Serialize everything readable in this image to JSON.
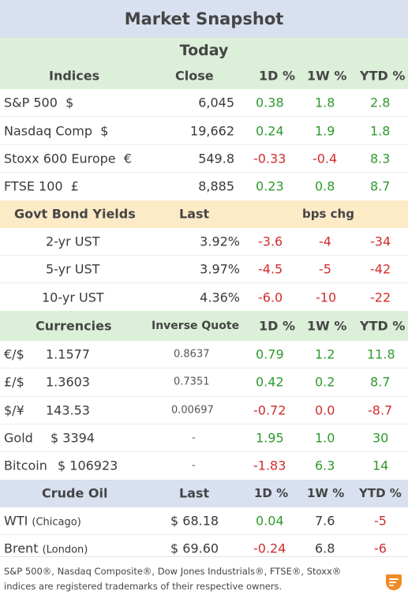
{
  "title": "Market Snapshot",
  "today_label": "Today",
  "indices": {
    "headers": {
      "name": "Indices",
      "close": "Close",
      "d1": "1D %",
      "w1": "1W %",
      "ytd": "YTD %"
    },
    "rows": [
      {
        "name": "S&P 500",
        "cur": "$",
        "close": "6,045",
        "d1": "0.38",
        "w1": "1.8",
        "ytd": "2.8"
      },
      {
        "name": "Nasdaq Comp",
        "cur": "$",
        "close": "19,662",
        "d1": "0.24",
        "w1": "1.9",
        "ytd": "1.8"
      },
      {
        "name": "Stoxx 600 Europe",
        "cur": "€",
        "close": "549.8",
        "d1": "-0.33",
        "w1": "-0.4",
        "ytd": "8.3"
      },
      {
        "name": "FTSE 100",
        "cur": "£",
        "close": "8,885",
        "d1": "0.23",
        "w1": "0.8",
        "ytd": "8.7"
      }
    ]
  },
  "bonds": {
    "headers": {
      "name": "Govt Bond Yields",
      "last": "Last",
      "chg": "bps chg"
    },
    "rows": [
      {
        "name": "2-yr UST",
        "last": "3.92%",
        "d1": "-3.6",
        "w1": "-4",
        "ytd": "-34"
      },
      {
        "name": "5-yr UST",
        "last": "3.97%",
        "d1": "-4.5",
        "w1": "-5",
        "ytd": "-42"
      },
      {
        "name": "10-yr UST",
        "last": "4.36%",
        "d1": "-6.0",
        "w1": "-10",
        "ytd": "-22"
      }
    ]
  },
  "currencies": {
    "headers": {
      "name": "Currencies",
      "inverse": "Inverse Quote",
      "d1": "1D %",
      "w1": "1W %",
      "ytd": "YTD %"
    },
    "rows": [
      {
        "name": "€/$",
        "value": "1.1577",
        "inverse": "0.8637",
        "d1": "0.79",
        "w1": "1.2",
        "ytd": "11.8"
      },
      {
        "name": "£/$",
        "value": "1.3603",
        "inverse": "0.7351",
        "d1": "0.42",
        "w1": "0.2",
        "ytd": "8.7"
      },
      {
        "name": "$/¥",
        "value": "143.53",
        "inverse": "0.00697",
        "d1": "-0.72",
        "w1": "0.0",
        "ytd": "-8.7"
      },
      {
        "name": "Gold",
        "value": "$ 3394",
        "inverse": "-",
        "d1": "1.95",
        "w1": "1.0",
        "ytd": "30"
      },
      {
        "name": "Bitcoin",
        "value": "$ 106923",
        "inverse": "-",
        "d1": "-1.83",
        "w1": "6.3",
        "ytd": "14"
      }
    ]
  },
  "oil": {
    "headers": {
      "name": "Crude Oil",
      "last": "Last",
      "d1": "1D %",
      "w1": "1W %",
      "ytd": "YTD %"
    },
    "rows": [
      {
        "name": "WTI",
        "loc": "(Chicago)",
        "last": "$ 68.18",
        "d1": "0.04",
        "w1": "7.6",
        "ytd": "-5"
      },
      {
        "name": "Brent",
        "loc": "(London)",
        "last": "$ 69.60",
        "d1": "-0.24",
        "w1": "6.8",
        "ytd": "-6"
      }
    ]
  },
  "footer": {
    "line1": "S&P 500®, Nasdaq Composite®, Dow Jones Industrials®, FTSE®, Stoxx®",
    "line2": "indices are registered trademarks of their respective owners."
  },
  "colors": {
    "positive": "#2e9a2e",
    "negative": "#d02c2c",
    "brand": "#f08a24"
  }
}
